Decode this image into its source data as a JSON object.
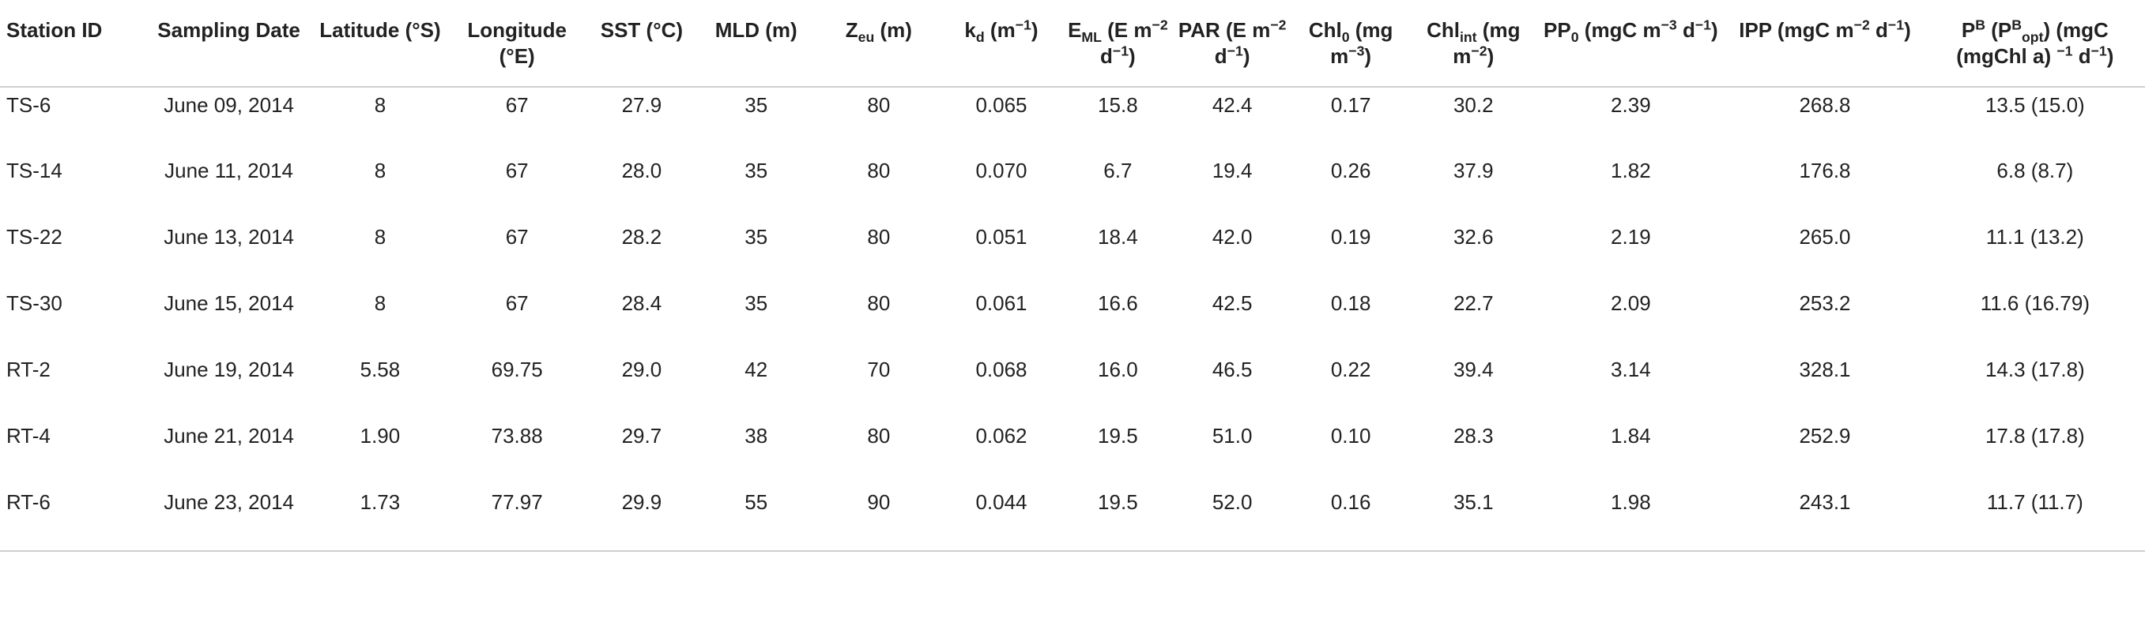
{
  "table": {
    "headers": [
      {
        "parts": [
          {
            "t": "Station ID"
          }
        ]
      },
      {
        "parts": [
          {
            "t": "Sampling Date"
          }
        ]
      },
      {
        "parts": [
          {
            "t": "Latitude (°S)"
          }
        ]
      },
      {
        "parts": [
          {
            "t": "Longitude (°E)"
          }
        ]
      },
      {
        "parts": [
          {
            "t": "SST (°C)"
          }
        ]
      },
      {
        "parts": [
          {
            "t": "MLD (m)"
          }
        ]
      },
      {
        "parts": [
          {
            "t": "Z"
          },
          {
            "t": "eu",
            "sub": true
          },
          {
            "t": " (m)"
          }
        ]
      },
      {
        "parts": [
          {
            "t": "k"
          },
          {
            "t": "d",
            "sub": true
          },
          {
            "t": " (m"
          },
          {
            "t": "−1",
            "sup": true
          },
          {
            "t": ")"
          }
        ]
      },
      {
        "parts": [
          {
            "t": "E"
          },
          {
            "t": "ML",
            "sub": true
          },
          {
            "t": " (E m"
          },
          {
            "t": "−2",
            "sup": true
          },
          {
            "t": " d"
          },
          {
            "t": "−1",
            "sup": true
          },
          {
            "t": ")"
          }
        ]
      },
      {
        "parts": [
          {
            "t": "PAR (E m"
          },
          {
            "t": "−2",
            "sup": true
          },
          {
            "t": " d"
          },
          {
            "t": "−1",
            "sup": true
          },
          {
            "t": ")"
          }
        ]
      },
      {
        "parts": [
          {
            "t": "Chl"
          },
          {
            "t": "0",
            "sub": true
          },
          {
            "t": " (mg m"
          },
          {
            "t": "−3",
            "sup": true
          },
          {
            "t": ")"
          }
        ]
      },
      {
        "parts": [
          {
            "t": "Chl"
          },
          {
            "t": "int",
            "sub": true
          },
          {
            "t": " (mg m"
          },
          {
            "t": "−2",
            "sup": true
          },
          {
            "t": ")"
          }
        ]
      },
      {
        "parts": [
          {
            "t": "PP"
          },
          {
            "t": "0",
            "sub": true
          },
          {
            "t": " (mgC m"
          },
          {
            "t": "−3",
            "sup": true
          },
          {
            "t": " d"
          },
          {
            "t": "−1",
            "sup": true
          },
          {
            "t": ")"
          }
        ]
      },
      {
        "parts": [
          {
            "t": "IPP (mgC m"
          },
          {
            "t": "−2",
            "sup": true
          },
          {
            "t": " d"
          },
          {
            "t": "−1",
            "sup": true
          },
          {
            "t": ")"
          }
        ]
      },
      {
        "parts": [
          {
            "t": "P"
          },
          {
            "t": "B",
            "sup": true
          },
          {
            "t": " (P"
          },
          {
            "t": "B",
            "sup": true
          },
          {
            "t": "opt",
            "sub": true
          },
          {
            "t": ") (mgC (mgChl a) "
          },
          {
            "t": "−1",
            "sup": true
          },
          {
            "t": " d"
          },
          {
            "t": "−1",
            "sup": true
          },
          {
            "t": ")"
          }
        ]
      }
    ],
    "rows": [
      [
        "TS-6",
        "June 09, 2014",
        "8",
        "67",
        "27.9",
        "35",
        "80",
        "0.065",
        "15.8",
        "42.4",
        "0.17",
        "30.2",
        "2.39",
        "268.8",
        "13.5 (15.0)"
      ],
      [
        "TS-14",
        "June 11, 2014",
        "8",
        "67",
        "28.0",
        "35",
        "80",
        "0.070",
        "6.7",
        "19.4",
        "0.26",
        "37.9",
        "1.82",
        "176.8",
        "6.8 (8.7)"
      ],
      [
        "TS-22",
        "June 13, 2014",
        "8",
        "67",
        "28.2",
        "35",
        "80",
        "0.051",
        "18.4",
        "42.0",
        "0.19",
        "32.6",
        "2.19",
        "265.0",
        "11.1 (13.2)"
      ],
      [
        "TS-30",
        "June 15, 2014",
        "8",
        "67",
        "28.4",
        "35",
        "80",
        "0.061",
        "16.6",
        "42.5",
        "0.18",
        "22.7",
        "2.09",
        "253.2",
        "11.6 (16.79)"
      ],
      [
        "RT-2",
        "June 19, 2014",
        "5.58",
        "69.75",
        "29.0",
        "42",
        "70",
        "0.068",
        "16.0",
        "46.5",
        "0.22",
        "39.4",
        "3.14",
        "328.1",
        "14.3 (17.8)"
      ],
      [
        "RT-4",
        "June 21, 2014",
        "1.90",
        "73.88",
        "29.7",
        "38",
        "80",
        "0.062",
        "19.5",
        "51.0",
        "0.10",
        "28.3",
        "1.84",
        "252.9",
        "17.8 (17.8)"
      ],
      [
        "RT-6",
        "June 23, 2014",
        "1.73",
        "77.97",
        "29.9",
        "55",
        "90",
        "0.044",
        "19.5",
        "52.0",
        "0.16",
        "35.1",
        "1.98",
        "243.1",
        "11.7 (11.7)"
      ]
    ]
  }
}
